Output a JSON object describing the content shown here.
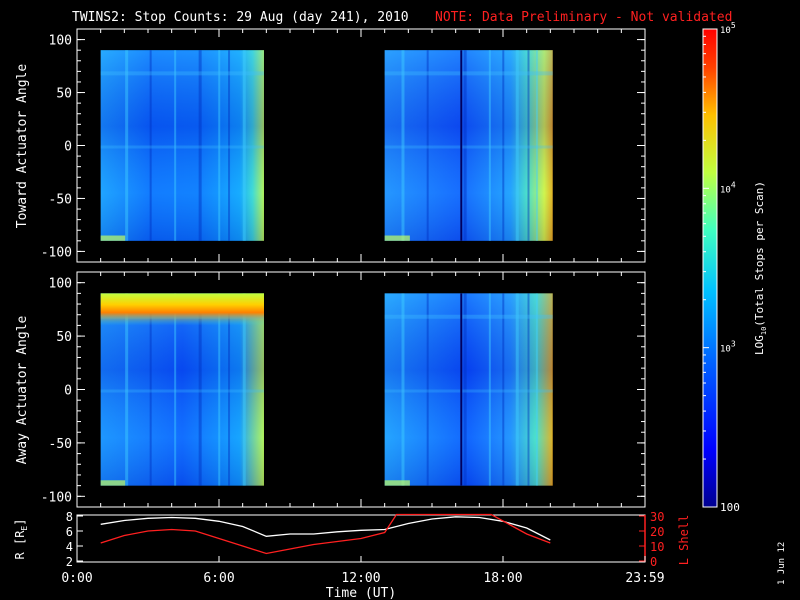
{
  "title": {
    "main": "TWINS2: Stop Counts: 29 Aug (day 241), 2010",
    "note": "NOTE: Data Preliminary - Not validated",
    "note_color": "#ff2020"
  },
  "side_date": "1 Jun 12",
  "colorbar": {
    "label": "LOG10(Total Stops per Scan)",
    "label_prefix": "LOG",
    "label_sub": "10",
    "label_suffix": "(Total Stops per Scan)",
    "ticks": [
      {
        "value": 100,
        "text": "100"
      },
      {
        "value": 1000,
        "text": "10^3"
      },
      {
        "value": 10000,
        "text": "10^4"
      },
      {
        "value": 100000,
        "text": "10^5"
      }
    ],
    "tick_text": {
      "t100": "100",
      "t3": "10",
      "t3exp": "3",
      "t4": "10",
      "t4exp": "4",
      "t5": "10",
      "t5exp": "5"
    },
    "scale": "log",
    "range": [
      100,
      100000
    ],
    "colormap": [
      "#000090",
      "#0000ff",
      "#0060ff",
      "#00c0ff",
      "#40ffc0",
      "#c0ff40",
      "#ffc000",
      "#ff4000",
      "#ff0000"
    ]
  },
  "chart_data": [
    {
      "type": "heatmap",
      "ylabel": "Toward Actuator Angle",
      "ylim": [
        -110,
        110
      ],
      "yticks": [
        100,
        50,
        0,
        -50,
        -100
      ],
      "ytick_labels": [
        "100",
        "50",
        "0",
        "-50",
        "-100"
      ],
      "x_unit": "hours UT",
      "xlim": [
        0,
        24
      ],
      "data_blocks": [
        {
          "x_start": 1.0,
          "x_end": 7.9,
          "y_start": -90,
          "y_end": 90
        },
        {
          "x_start": 13.0,
          "x_end": 20.1,
          "y_start": -90,
          "y_end": 90
        }
      ]
    },
    {
      "type": "heatmap",
      "ylabel": "Away Actuator Angle",
      "ylim": [
        -110,
        110
      ],
      "yticks": [
        100,
        50,
        0,
        -50,
        -100
      ],
      "ytick_labels": [
        "100",
        "50",
        "0",
        "-50",
        "-100"
      ],
      "x_unit": "hours UT",
      "xlim": [
        0,
        24
      ],
      "data_blocks": [
        {
          "x_start": 1.0,
          "x_end": 7.9,
          "y_start": -90,
          "y_end": 90
        },
        {
          "x_start": 13.0,
          "x_end": 20.1,
          "y_start": -90,
          "y_end": 90
        }
      ]
    },
    {
      "type": "line",
      "xlabel": "Time (UT)",
      "xlim": [
        0,
        24
      ],
      "xticks": [
        0,
        6,
        12,
        18,
        24
      ],
      "xtick_labels": [
        "0:00",
        "6:00",
        "12:00",
        "18:00",
        "23:59"
      ],
      "left_axis": {
        "label": "R [RE]",
        "label_text": "R [R",
        "label_sub": "E",
        "label_close": "]",
        "ylim": [
          2,
          8
        ],
        "ticks": [
          2,
          4,
          6,
          8
        ],
        "tick_labels": [
          "2",
          "4",
          "6",
          "8"
        ],
        "color": "#ffffff"
      },
      "right_axis": {
        "label": "L Shell",
        "ylim": [
          0,
          30
        ],
        "ticks": [
          0,
          10,
          20,
          30
        ],
        "tick_labels": [
          "0",
          "10",
          "20",
          "30"
        ],
        "color": "#ff2020"
      },
      "series": [
        {
          "axis": "left",
          "color": "#ffffff",
          "x": [
            1,
            2,
            3,
            4,
            5,
            6,
            7,
            8,
            9,
            10,
            11,
            12,
            13,
            14,
            15,
            16,
            17,
            18,
            19,
            20
          ],
          "y": [
            6.9,
            7.4,
            7.7,
            7.8,
            7.7,
            7.3,
            6.6,
            5.3,
            5.6,
            5.6,
            5.9,
            6.1,
            6.2,
            7.0,
            7.6,
            7.9,
            7.8,
            7.3,
            6.4,
            4.8
          ]
        },
        {
          "axis": "right",
          "color": "#ff2020",
          "x": [
            1,
            2,
            3,
            4,
            5,
            6,
            7,
            8,
            9,
            10,
            11,
            12,
            13,
            13.5,
            17.5,
            19,
            20
          ],
          "y": [
            12,
            17,
            20,
            21,
            20,
            15,
            10,
            5,
            8,
            11,
            13,
            15,
            19,
            31,
            31,
            18,
            12
          ]
        }
      ]
    }
  ]
}
